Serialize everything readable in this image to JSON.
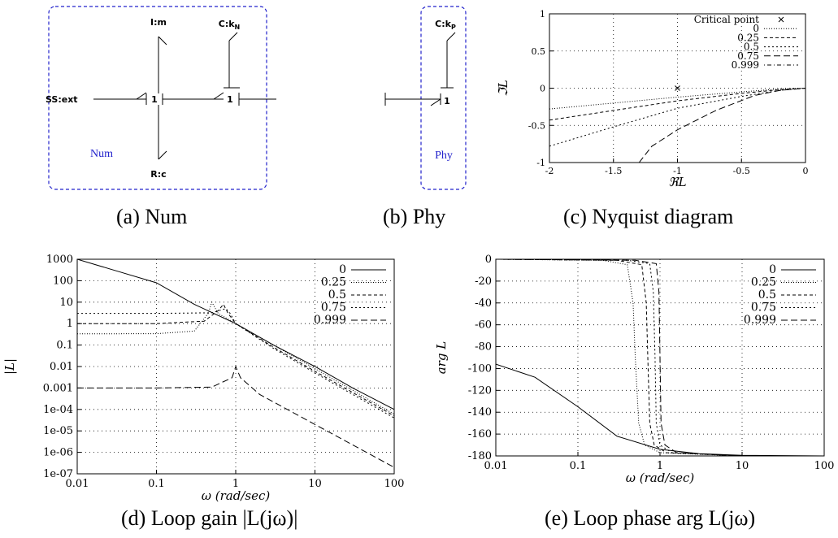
{
  "panels": {
    "a": {
      "caption": "(a) Num",
      "labels": {
        "ext": "SS:ext",
        "im": "I:m",
        "ckn": "C:k",
        "ckn_sub": "N",
        "rc": "R:c",
        "j1": "1",
        "j2": "1",
        "box": "Num"
      }
    },
    "b": {
      "caption": "(b) Phy",
      "labels": {
        "ckp": "C:k",
        "ckp_sub": "P",
        "j1": "1",
        "box": "Phy"
      }
    },
    "c": {
      "caption": "(c) Nyquist diagram",
      "chart_data": {
        "type": "line",
        "xlabel": "ℜL",
        "ylabel": "ℑL",
        "xlim": [
          -2,
          0
        ],
        "ylim": [
          -1,
          1
        ],
        "xticks": [
          "-2",
          "-1.5",
          "-1",
          "-0.5",
          "0"
        ],
        "yticks": [
          "-1",
          "-0.5",
          "0",
          "0.5",
          "1"
        ],
        "grid": true,
        "legend_position": "top-right",
        "critical_point": {
          "label": "Critical point",
          "x": -1,
          "y": 0
        },
        "series": [
          {
            "name": "0",
            "dash": "1,2",
            "x": [
              -2,
              -1.5,
              -1,
              -0.5,
              -0.2,
              0
            ],
            "y": [
              -0.28,
              -0.2,
              -0.12,
              -0.05,
              -0.01,
              0
            ]
          },
          {
            "name": "0.25",
            "dash": "4,3",
            "x": [
              -2,
              -1.5,
              -1,
              -0.5,
              -0.2,
              0
            ],
            "y": [
              -0.43,
              -0.3,
              -0.17,
              -0.07,
              -0.02,
              0
            ]
          },
          {
            "name": "0.5",
            "dash": "2,3",
            "x": [
              -2,
              -1.5,
              -1,
              -0.5,
              -0.2,
              0
            ],
            "y": [
              -0.78,
              -0.52,
              -0.27,
              -0.11,
              -0.03,
              0
            ]
          },
          {
            "name": "0.75",
            "dash": "8,4",
            "x": [
              -1.3,
              -1.2,
              -1,
              -0.7,
              -0.4,
              -0.2,
              0
            ],
            "y": [
              -1,
              -0.78,
              -0.56,
              -0.3,
              -0.1,
              -0.03,
              0
            ]
          },
          {
            "name": "0.999",
            "dash": "1,3,5,3",
            "x": [],
            "y": []
          }
        ]
      }
    },
    "d": {
      "caption": "(d) Loop gain |L(jω)|",
      "chart_data": {
        "type": "line",
        "xlabel": "ω (rad/sec)",
        "ylabel": "|L|",
        "x_scale": "log",
        "y_scale": "log",
        "xlim": [
          0.01,
          100
        ],
        "ylim": [
          1e-07,
          1000
        ],
        "xticks": [
          "0.01",
          "0.1",
          "1",
          "10",
          "100"
        ],
        "yticks": [
          "1000",
          "100",
          "10",
          "1",
          "0.1",
          "0.01",
          "0.001",
          "1e-04",
          "1e-05",
          "1e-06",
          "1e-07"
        ],
        "grid": true,
        "legend_position": "top-right",
        "series": [
          {
            "name": "0",
            "dash": "",
            "x": [
              0.01,
              0.03,
              0.1,
              0.3,
              1,
              3,
              10,
              30,
              100
            ],
            "y": [
              1000,
              300,
              80,
              8,
              1,
              0.1,
              0.01,
              0.001,
              0.0001
            ]
          },
          {
            "name": "0.25",
            "dash": "1,2",
            "x": [
              0.01,
              0.1,
              0.3,
              0.45,
              0.5,
              0.6,
              1,
              3,
              10,
              100
            ],
            "y": [
              0.333,
              0.34,
              0.45,
              3,
              10,
              3,
              1,
              0.1,
              0.008,
              6e-05
            ]
          },
          {
            "name": "0.5",
            "dash": "4,3",
            "x": [
              0.01,
              0.1,
              0.4,
              0.6,
              0.7,
              0.8,
              1,
              3,
              10,
              100
            ],
            "y": [
              1,
              1,
              1.3,
              4,
              8,
              3,
              1,
              0.08,
              0.006,
              5e-05
            ]
          },
          {
            "name": "0.75",
            "dash": "2,3",
            "x": [
              0.01,
              0.1,
              0.5,
              0.75,
              0.85,
              1,
              3,
              10,
              100
            ],
            "y": [
              3,
              3,
              3.2,
              5,
              3,
              1,
              0.07,
              0.005,
              4e-05
            ]
          },
          {
            "name": "0.999",
            "dash": "8,4",
            "x": [
              0.01,
              0.1,
              0.5,
              0.9,
              1,
              1.15,
              2,
              10,
              100
            ],
            "y": [
              0.001,
              0.001,
              0.0011,
              0.003,
              0.01,
              0.003,
              0.0005,
              2e-05,
              2e-07
            ]
          }
        ]
      }
    },
    "e": {
      "caption": "(e) Loop phase arg L(jω)",
      "chart_data": {
        "type": "line",
        "xlabel": "ω (rad/sec)",
        "ylabel": "arg L",
        "x_scale": "log",
        "xlim": [
          0.01,
          100
        ],
        "ylim": [
          -180,
          0
        ],
        "xticks": [
          "0.01",
          "0.1",
          "1",
          "10",
          "100"
        ],
        "yticks": [
          "0",
          "-20",
          "-40",
          "-60",
          "-80",
          "-100",
          "-120",
          "-140",
          "-160",
          "-180"
        ],
        "grid": true,
        "legend_position": "top-right",
        "series": [
          {
            "name": "0",
            "dash": "",
            "x": [
              0.01,
              0.03,
              0.1,
              0.3,
              1,
              3,
              10,
              100
            ],
            "y": [
              -96,
              -108,
              -135,
              -162,
              -174,
              -178,
              -179.5,
              -180
            ]
          },
          {
            "name": "0.25",
            "dash": "1,2",
            "x": [
              0.01,
              0.2,
              0.4,
              0.47,
              0.5,
              0.55,
              0.65,
              1,
              10,
              100
            ],
            "y": [
              0,
              -1,
              -5,
              -40,
              -90,
              -150,
              -170,
              -177,
              -180,
              -180
            ]
          },
          {
            "name": "0.5",
            "dash": "4,3",
            "x": [
              0.01,
              0.3,
              0.6,
              0.68,
              0.71,
              0.75,
              0.85,
              1.2,
              10,
              100
            ],
            "y": [
              0,
              -1,
              -5,
              -40,
              -90,
              -150,
              -170,
              -177,
              -180,
              -180
            ]
          },
          {
            "name": "0.75",
            "dash": "2,3",
            "x": [
              0.01,
              0.4,
              0.75,
              0.83,
              0.87,
              0.9,
              1,
              1.4,
              10,
              100
            ],
            "y": [
              0,
              -1,
              -4,
              -30,
              -90,
              -150,
              -170,
              -177,
              -180,
              -180
            ]
          },
          {
            "name": "0.999",
            "dash": "8,4",
            "x": [
              0.01,
              0.5,
              0.9,
              0.97,
              1,
              1.03,
              1.15,
              1.6,
              10,
              100
            ],
            "y": [
              0,
              -1,
              -4,
              -30,
              -90,
              -150,
              -170,
              -177,
              -180,
              -180
            ]
          }
        ]
      }
    }
  }
}
